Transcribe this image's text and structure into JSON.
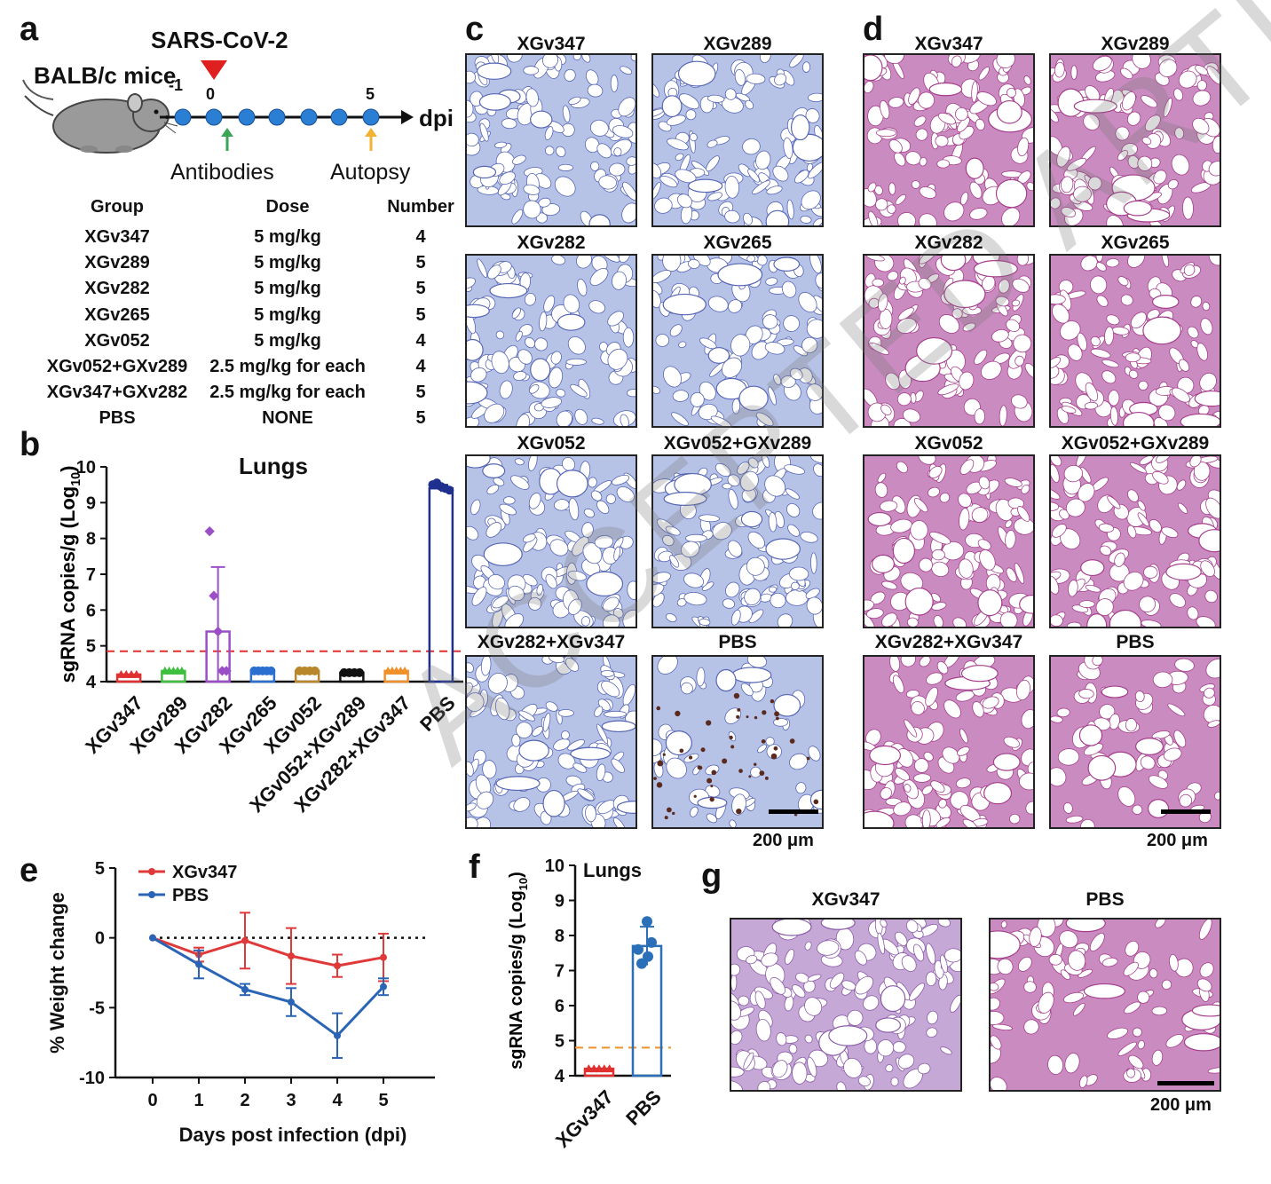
{
  "panels": {
    "a": "a",
    "b": "b",
    "c": "c",
    "d": "d",
    "e": "e",
    "f": "f",
    "g": "g"
  },
  "panel_a": {
    "virus": "SARS-CoV-2",
    "strain": "BALB/c mice",
    "timeline_labels": [
      "-1",
      "0",
      "5"
    ],
    "axis_unit": "dpi",
    "event1": "Antibodies",
    "event2": "Autopsy",
    "table": {
      "headers": [
        "Group",
        "Dose",
        "Number"
      ],
      "rows": [
        [
          "XGv347",
          "5 mg/kg",
          "4"
        ],
        [
          "XGv289",
          "5 mg/kg",
          "5"
        ],
        [
          "XGv282",
          "5 mg/kg",
          "5"
        ],
        [
          "XGv265",
          "5 mg/kg",
          "5"
        ],
        [
          "XGv052",
          "5 mg/kg",
          "4"
        ],
        [
          "XGv052+GXv289",
          "2.5 mg/kg for each",
          "4"
        ],
        [
          "XGv347+GXv282",
          "2.5 mg/kg for each",
          "5"
        ],
        [
          "PBS",
          "NONE",
          "5"
        ]
      ]
    },
    "colors": {
      "triangle": "#e02020",
      "dot": "#2a7fd4",
      "arrow_green": "#3aa655",
      "arrow_orange": "#f2b233"
    }
  },
  "panel_c": {
    "titles": [
      "XGv347",
      "XGv289",
      "XGv282",
      "XGv265",
      "XGv052",
      "XGv052+GXv289",
      "XGv282+XGv347",
      "PBS"
    ],
    "scale": "200 μm"
  },
  "panel_d": {
    "titles": [
      "XGv347",
      "XGv289",
      "XGv282",
      "XGv265",
      "XGv052",
      "XGv052+GXv289",
      "XGv282+XGv347",
      "PBS"
    ],
    "scale": "200 μm"
  },
  "panel_g": {
    "titles": [
      "XGv347",
      "PBS"
    ],
    "scale": "200 μm"
  },
  "chart_data": [
    {
      "id": "b",
      "type": "bar",
      "title": "Lungs",
      "ylabel": "sgRNA copies/g (Log10)",
      "ylim": [
        4,
        10
      ],
      "yticks": [
        "4",
        "5",
        "6",
        "7",
        "8",
        "9",
        "10"
      ],
      "threshold": 4.85,
      "categories": [
        "XGv347",
        "XGv289",
        "XGv282",
        "XGv265",
        "XGv052",
        "XGv052+XGv289",
        "XGv282+XGv347",
        "PBS"
      ],
      "values": [
        4.2,
        4.3,
        5.4,
        4.3,
        4.3,
        4.25,
        4.3,
        9.4
      ],
      "errors": [
        0,
        0,
        1.8,
        0,
        0,
        0,
        0,
        0.1
      ],
      "colors": [
        "#e03030",
        "#3fbf3f",
        "#9b4fc7",
        "#2a6fd0",
        "#b8862b",
        "#111111",
        "#f0902a",
        "#1f2f8f"
      ],
      "points": [
        [
          4.2,
          4.2,
          4.2,
          4.2
        ],
        [
          4.3,
          4.3,
          4.3,
          4.3,
          4.3
        ],
        [
          8.2,
          6.4,
          5.4,
          4.3,
          4.3
        ],
        [
          4.3,
          4.3,
          4.3,
          4.3,
          4.3
        ],
        [
          4.3,
          4.3,
          4.3,
          4.3
        ],
        [
          4.25,
          4.25,
          4.25,
          4.25
        ],
        [
          4.3,
          4.3,
          4.3,
          4.3,
          4.3
        ],
        [
          9.5,
          9.55,
          9.45,
          9.4,
          9.35
        ]
      ]
    },
    {
      "id": "e",
      "type": "line",
      "ylabel": "% Weight change",
      "xlabel": "Days post infection (dpi)",
      "ylim": [
        -10,
        5
      ],
      "yticks": [
        "5",
        "0",
        "-5",
        "-10"
      ],
      "x": [
        0,
        1,
        2,
        3,
        4,
        5
      ],
      "series": [
        {
          "name": "XGv347",
          "color": "#e0393a",
          "values": [
            0,
            -1.2,
            -0.2,
            -1.3,
            -2.0,
            -1.4
          ],
          "errors": [
            0,
            0.5,
            2.0,
            2.0,
            0.8,
            1.7
          ]
        },
        {
          "name": "PBS",
          "color": "#2a64b5",
          "values": [
            0,
            -1.9,
            -3.7,
            -4.6,
            -7.0,
            -3.5
          ],
          "errors": [
            0,
            1.0,
            0.4,
            1.0,
            1.6,
            0.6
          ]
        }
      ]
    },
    {
      "id": "f",
      "type": "bar",
      "title": "Lungs",
      "ylabel": "sgRNA copies/g (Log10)",
      "ylim": [
        4,
        10
      ],
      "yticks": [
        "4",
        "5",
        "6",
        "7",
        "8",
        "9",
        "10"
      ],
      "threshold": 4.8,
      "categories": [
        "XGv347",
        "PBS"
      ],
      "values": [
        4.2,
        7.7
      ],
      "errors": [
        0,
        0.55
      ],
      "colors": [
        "#e03030",
        "#2a6fb8"
      ],
      "points": [
        [
          4.2,
          4.2,
          4.2,
          4.2,
          4.2
        ],
        [
          8.4,
          7.8,
          7.6,
          7.4,
          7.2
        ]
      ]
    }
  ],
  "watermark": "ACCEPTED ARTICLE PREVIEW"
}
